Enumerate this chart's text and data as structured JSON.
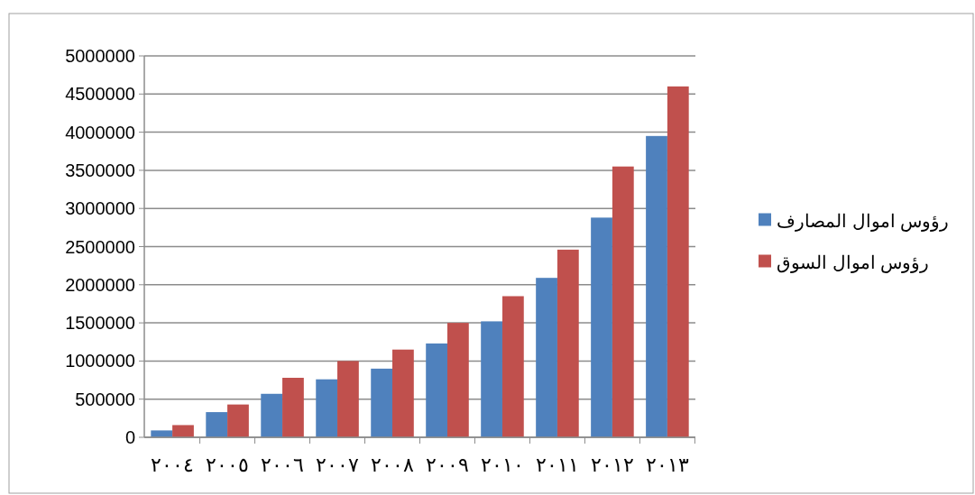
{
  "chart_data": {
    "type": "bar",
    "categories": [
      "٢٠٠٤",
      "٢٠٠٥",
      "٢٠٠٦",
      "٢٠٠٧",
      "٢٠٠٨",
      "٢٠٠٩",
      "٢٠١٠",
      "٢٠١١",
      "٢٠١٢",
      "٢٠١٣"
    ],
    "series": [
      {
        "name": "رؤوس اموال المصارف",
        "color": "#4f81bd",
        "values": [
          90000,
          330000,
          570000,
          760000,
          900000,
          1230000,
          1520000,
          2090000,
          2880000,
          3950000
        ]
      },
      {
        "name": "رؤوس اموال السوق",
        "color": "#c0504d",
        "values": [
          160000,
          430000,
          780000,
          1000000,
          1150000,
          1500000,
          1850000,
          2460000,
          3550000,
          4600000
        ]
      }
    ],
    "ylim": [
      0,
      5000000
    ],
    "yticks": [
      0,
      500000,
      1000000,
      1500000,
      2000000,
      2500000,
      3000000,
      3500000,
      4000000,
      4500000,
      5000000
    ],
    "grid": "y",
    "legend": "right"
  }
}
